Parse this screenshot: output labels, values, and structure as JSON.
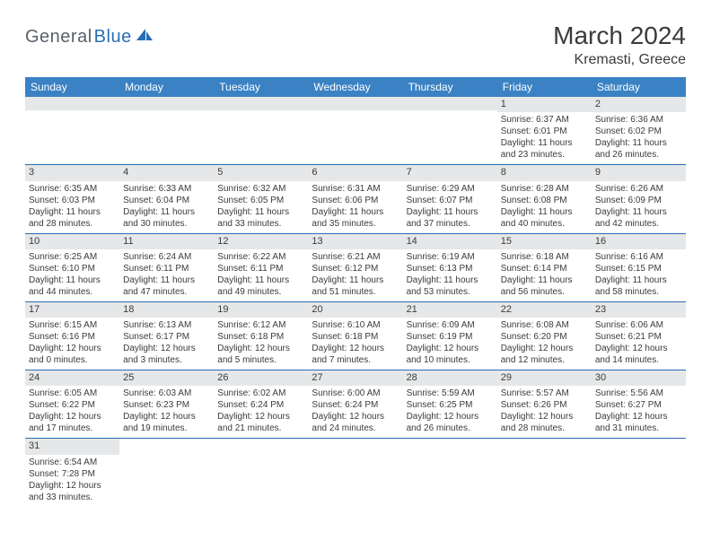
{
  "logo": {
    "part1": "General",
    "part2": "Blue"
  },
  "title": "March 2024",
  "location": "Kremasti, Greece",
  "colors": {
    "header_bg": "#3a82c4",
    "header_text": "#ffffff",
    "border": "#2a6db5",
    "daynum_bg": "#e6e7e8",
    "text": "#3b3b3b",
    "logo_gray": "#5a5f6b",
    "logo_blue": "#2a6db5"
  },
  "weekdays": [
    "Sunday",
    "Monday",
    "Tuesday",
    "Wednesday",
    "Thursday",
    "Friday",
    "Saturday"
  ],
  "weeks": [
    [
      null,
      null,
      null,
      null,
      null,
      {
        "d": "1",
        "sr": "Sunrise: 6:37 AM",
        "ss": "Sunset: 6:01 PM",
        "dl1": "Daylight: 11 hours",
        "dl2": "and 23 minutes."
      },
      {
        "d": "2",
        "sr": "Sunrise: 6:36 AM",
        "ss": "Sunset: 6:02 PM",
        "dl1": "Daylight: 11 hours",
        "dl2": "and 26 minutes."
      }
    ],
    [
      {
        "d": "3",
        "sr": "Sunrise: 6:35 AM",
        "ss": "Sunset: 6:03 PM",
        "dl1": "Daylight: 11 hours",
        "dl2": "and 28 minutes."
      },
      {
        "d": "4",
        "sr": "Sunrise: 6:33 AM",
        "ss": "Sunset: 6:04 PM",
        "dl1": "Daylight: 11 hours",
        "dl2": "and 30 minutes."
      },
      {
        "d": "5",
        "sr": "Sunrise: 6:32 AM",
        "ss": "Sunset: 6:05 PM",
        "dl1": "Daylight: 11 hours",
        "dl2": "and 33 minutes."
      },
      {
        "d": "6",
        "sr": "Sunrise: 6:31 AM",
        "ss": "Sunset: 6:06 PM",
        "dl1": "Daylight: 11 hours",
        "dl2": "and 35 minutes."
      },
      {
        "d": "7",
        "sr": "Sunrise: 6:29 AM",
        "ss": "Sunset: 6:07 PM",
        "dl1": "Daylight: 11 hours",
        "dl2": "and 37 minutes."
      },
      {
        "d": "8",
        "sr": "Sunrise: 6:28 AM",
        "ss": "Sunset: 6:08 PM",
        "dl1": "Daylight: 11 hours",
        "dl2": "and 40 minutes."
      },
      {
        "d": "9",
        "sr": "Sunrise: 6:26 AM",
        "ss": "Sunset: 6:09 PM",
        "dl1": "Daylight: 11 hours",
        "dl2": "and 42 minutes."
      }
    ],
    [
      {
        "d": "10",
        "sr": "Sunrise: 6:25 AM",
        "ss": "Sunset: 6:10 PM",
        "dl1": "Daylight: 11 hours",
        "dl2": "and 44 minutes."
      },
      {
        "d": "11",
        "sr": "Sunrise: 6:24 AM",
        "ss": "Sunset: 6:11 PM",
        "dl1": "Daylight: 11 hours",
        "dl2": "and 47 minutes."
      },
      {
        "d": "12",
        "sr": "Sunrise: 6:22 AM",
        "ss": "Sunset: 6:11 PM",
        "dl1": "Daylight: 11 hours",
        "dl2": "and 49 minutes."
      },
      {
        "d": "13",
        "sr": "Sunrise: 6:21 AM",
        "ss": "Sunset: 6:12 PM",
        "dl1": "Daylight: 11 hours",
        "dl2": "and 51 minutes."
      },
      {
        "d": "14",
        "sr": "Sunrise: 6:19 AM",
        "ss": "Sunset: 6:13 PM",
        "dl1": "Daylight: 11 hours",
        "dl2": "and 53 minutes."
      },
      {
        "d": "15",
        "sr": "Sunrise: 6:18 AM",
        "ss": "Sunset: 6:14 PM",
        "dl1": "Daylight: 11 hours",
        "dl2": "and 56 minutes."
      },
      {
        "d": "16",
        "sr": "Sunrise: 6:16 AM",
        "ss": "Sunset: 6:15 PM",
        "dl1": "Daylight: 11 hours",
        "dl2": "and 58 minutes."
      }
    ],
    [
      {
        "d": "17",
        "sr": "Sunrise: 6:15 AM",
        "ss": "Sunset: 6:16 PM",
        "dl1": "Daylight: 12 hours",
        "dl2": "and 0 minutes."
      },
      {
        "d": "18",
        "sr": "Sunrise: 6:13 AM",
        "ss": "Sunset: 6:17 PM",
        "dl1": "Daylight: 12 hours",
        "dl2": "and 3 minutes."
      },
      {
        "d": "19",
        "sr": "Sunrise: 6:12 AM",
        "ss": "Sunset: 6:18 PM",
        "dl1": "Daylight: 12 hours",
        "dl2": "and 5 minutes."
      },
      {
        "d": "20",
        "sr": "Sunrise: 6:10 AM",
        "ss": "Sunset: 6:18 PM",
        "dl1": "Daylight: 12 hours",
        "dl2": "and 7 minutes."
      },
      {
        "d": "21",
        "sr": "Sunrise: 6:09 AM",
        "ss": "Sunset: 6:19 PM",
        "dl1": "Daylight: 12 hours",
        "dl2": "and 10 minutes."
      },
      {
        "d": "22",
        "sr": "Sunrise: 6:08 AM",
        "ss": "Sunset: 6:20 PM",
        "dl1": "Daylight: 12 hours",
        "dl2": "and 12 minutes."
      },
      {
        "d": "23",
        "sr": "Sunrise: 6:06 AM",
        "ss": "Sunset: 6:21 PM",
        "dl1": "Daylight: 12 hours",
        "dl2": "and 14 minutes."
      }
    ],
    [
      {
        "d": "24",
        "sr": "Sunrise: 6:05 AM",
        "ss": "Sunset: 6:22 PM",
        "dl1": "Daylight: 12 hours",
        "dl2": "and 17 minutes."
      },
      {
        "d": "25",
        "sr": "Sunrise: 6:03 AM",
        "ss": "Sunset: 6:23 PM",
        "dl1": "Daylight: 12 hours",
        "dl2": "and 19 minutes."
      },
      {
        "d": "26",
        "sr": "Sunrise: 6:02 AM",
        "ss": "Sunset: 6:24 PM",
        "dl1": "Daylight: 12 hours",
        "dl2": "and 21 minutes."
      },
      {
        "d": "27",
        "sr": "Sunrise: 6:00 AM",
        "ss": "Sunset: 6:24 PM",
        "dl1": "Daylight: 12 hours",
        "dl2": "and 24 minutes."
      },
      {
        "d": "28",
        "sr": "Sunrise: 5:59 AM",
        "ss": "Sunset: 6:25 PM",
        "dl1": "Daylight: 12 hours",
        "dl2": "and 26 minutes."
      },
      {
        "d": "29",
        "sr": "Sunrise: 5:57 AM",
        "ss": "Sunset: 6:26 PM",
        "dl1": "Daylight: 12 hours",
        "dl2": "and 28 minutes."
      },
      {
        "d": "30",
        "sr": "Sunrise: 5:56 AM",
        "ss": "Sunset: 6:27 PM",
        "dl1": "Daylight: 12 hours",
        "dl2": "and 31 minutes."
      }
    ],
    [
      {
        "d": "31",
        "sr": "Sunrise: 6:54 AM",
        "ss": "Sunset: 7:28 PM",
        "dl1": "Daylight: 12 hours",
        "dl2": "and 33 minutes."
      },
      null,
      null,
      null,
      null,
      null,
      null
    ]
  ]
}
